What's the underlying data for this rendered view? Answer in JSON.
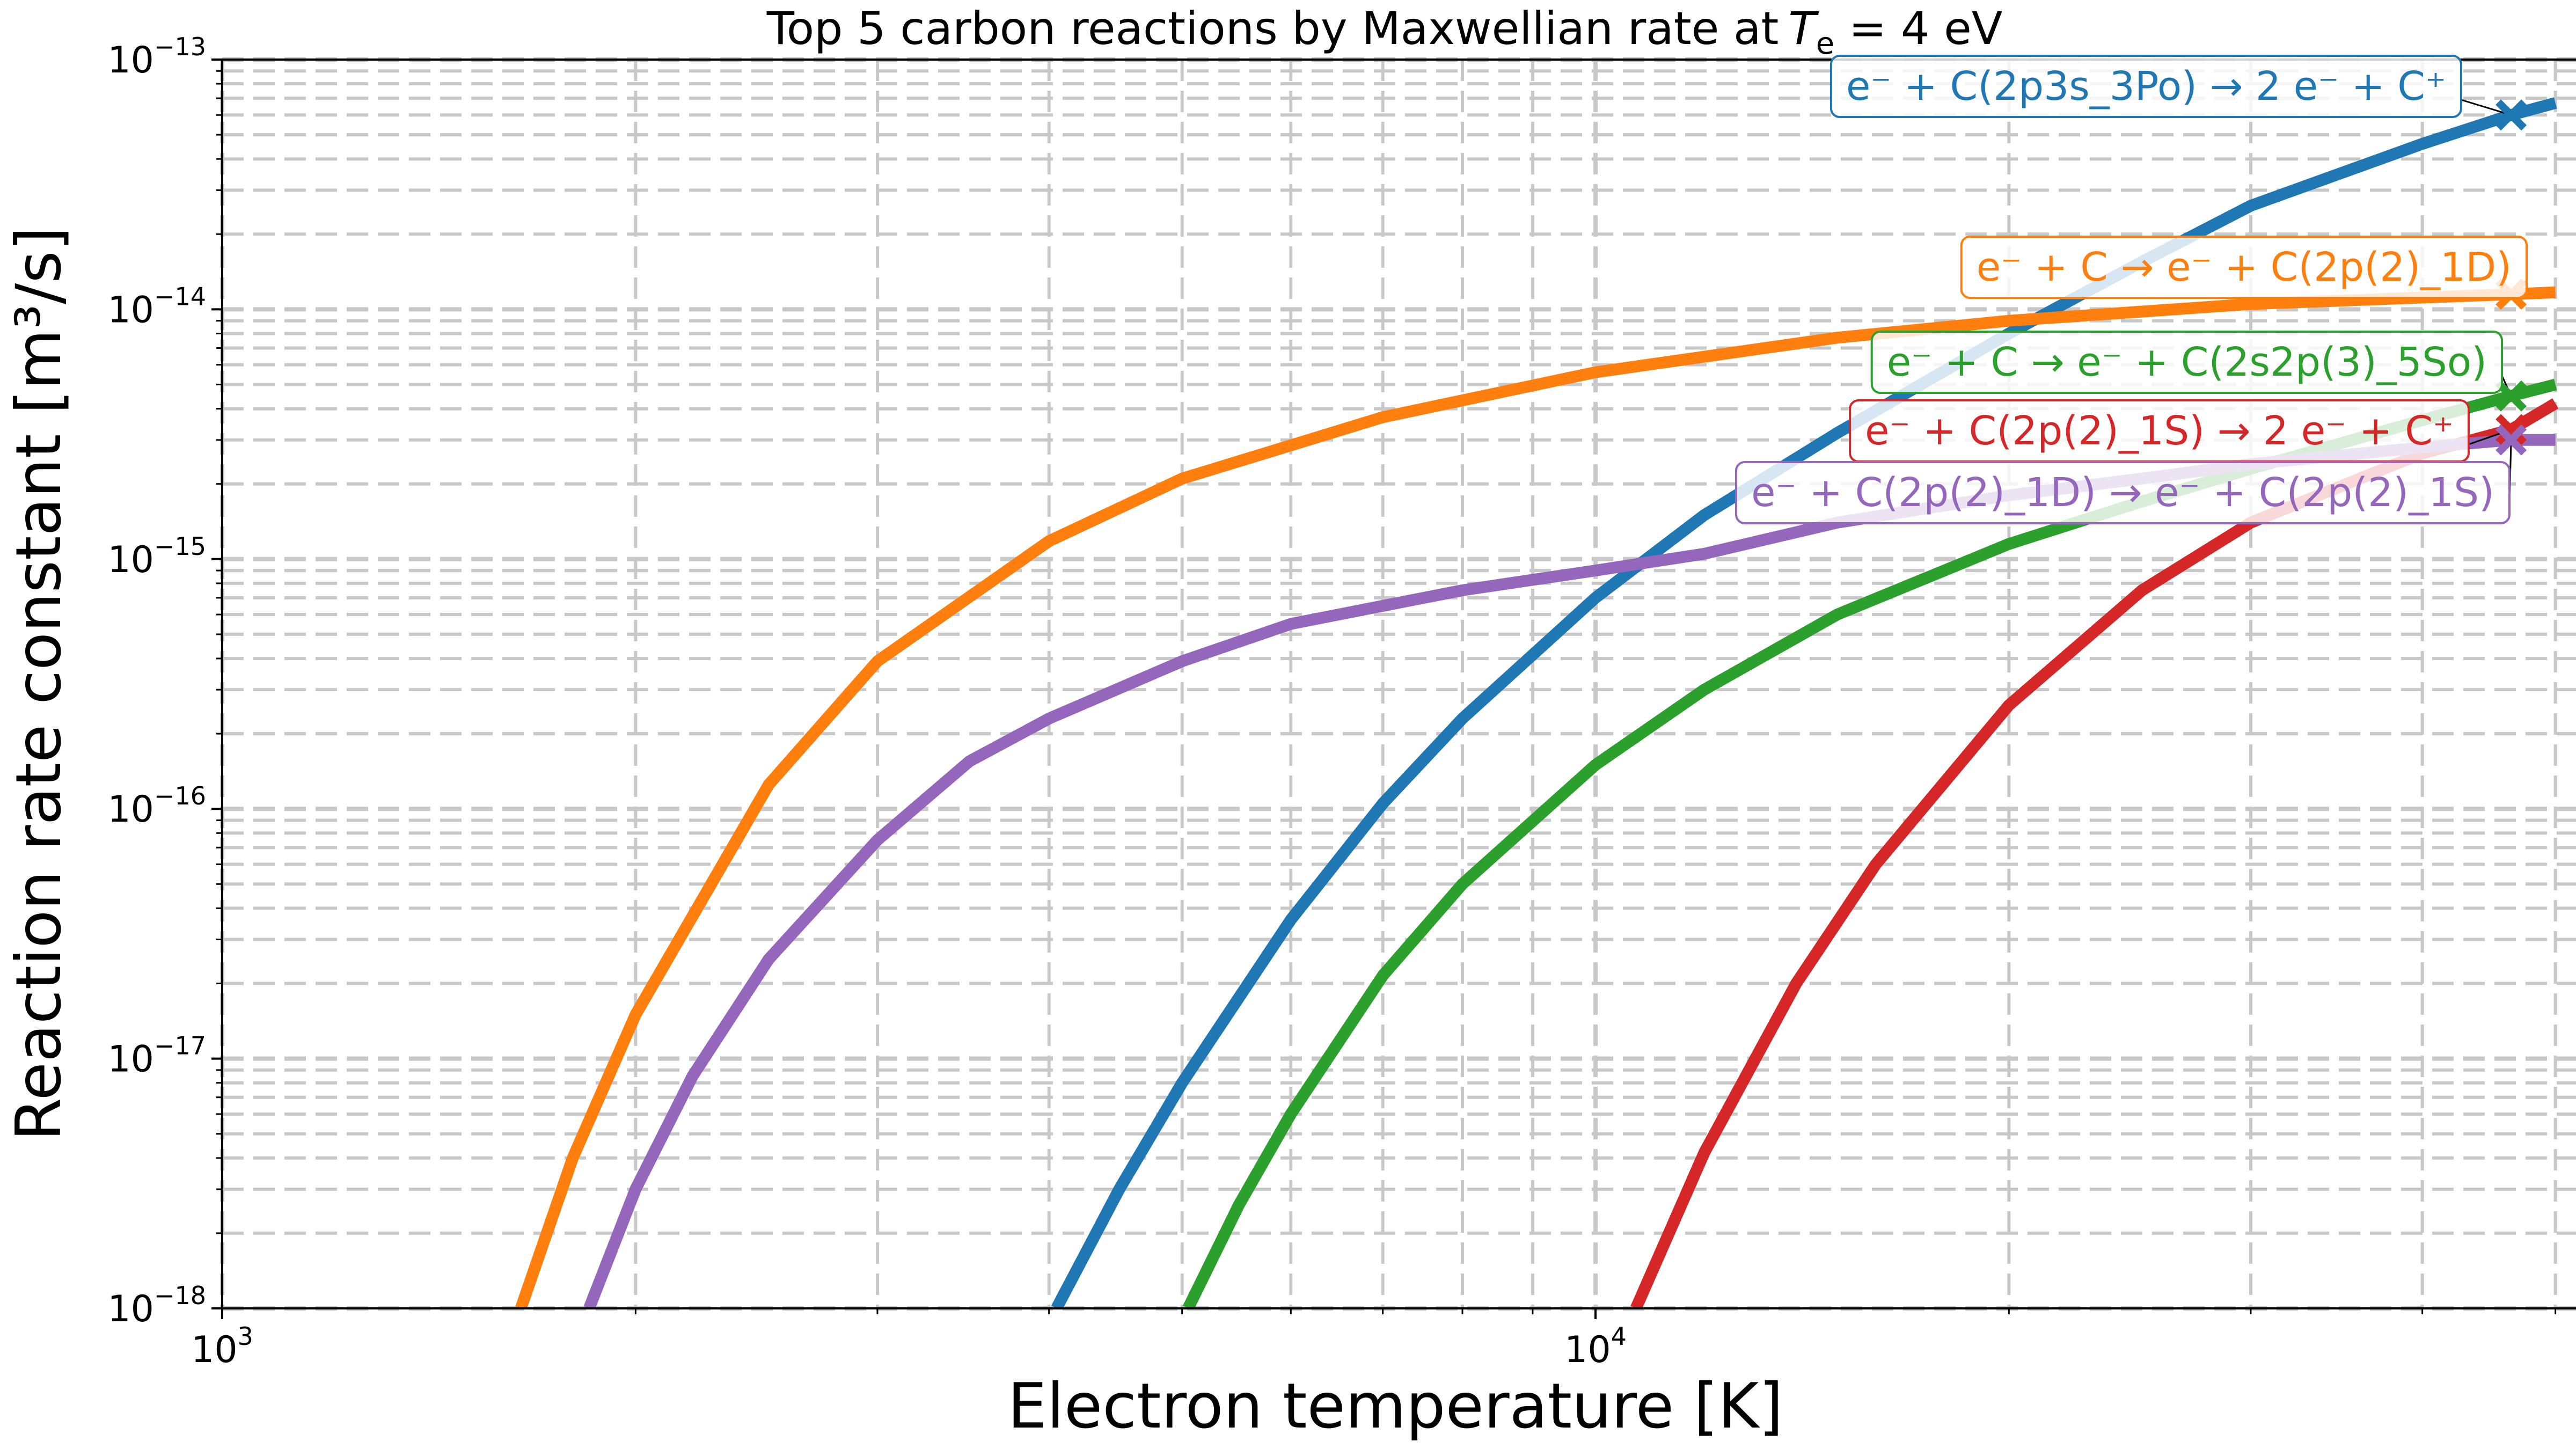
{
  "chart_data": {
    "type": "line",
    "title": "Top 5 carbon reactions by Maxwellian rate at",
    "title_math": {
      "var": "T",
      "sub": "e",
      "rest": " = 4 eV"
    },
    "xlabel": "Electron temperature [K]",
    "ylabel": "Reaction rate constant [m³/s]",
    "xscale": "log",
    "yscale": "log",
    "xlim": [
      1000,
      50000
    ],
    "ylim": [
      1e-18,
      1e-13
    ],
    "grid": true,
    "x_ticks": [
      {
        "base": "10",
        "exp": "3",
        "value": 1000
      },
      {
        "base": "10",
        "exp": "4",
        "value": 10000
      }
    ],
    "y_ticks": [
      {
        "base": "10",
        "exp": "−13",
        "value": 1e-13
      },
      {
        "base": "10",
        "exp": "−14",
        "value": 1e-14
      },
      {
        "base": "10",
        "exp": "−15",
        "value": 1e-15
      },
      {
        "base": "10",
        "exp": "−16",
        "value": 1e-16
      },
      {
        "base": "10",
        "exp": "−17",
        "value": 1e-17
      },
      {
        "base": "10",
        "exp": "−18",
        "value": 1e-18
      }
    ],
    "marker_x": 46420,
    "series": [
      {
        "name": "e⁻ + C(2p3s_3Po) → 2 e⁻ + C⁺",
        "color": "#1f77b4",
        "x": [
          4050,
          4500,
          5000,
          6000,
          7000,
          8000,
          10000,
          12000,
          15000,
          20000,
          25000,
          30000,
          40000,
          46420,
          50000
        ],
        "y": [
          1e-18,
          3e-18,
          8e-18,
          3.6e-17,
          1.05e-16,
          2.3e-16,
          7e-16,
          1.5e-15,
          3.2e-15,
          8e-15,
          1.55e-14,
          2.6e-14,
          4.6e-14,
          6e-14,
          6.7e-14
        ]
      },
      {
        "name": "e⁻ + C → e⁻ + C(2p(2)_1D)",
        "color": "#ff7f0e",
        "x": [
          1650,
          1800,
          2000,
          2500,
          3000,
          4000,
          5000,
          7000,
          10000,
          15000,
          20000,
          30000,
          46420,
          50000
        ],
        "y": [
          1e-18,
          4e-18,
          1.5e-17,
          1.25e-16,
          3.9e-16,
          1.18e-15,
          2.1e-15,
          3.7e-15,
          5.6e-15,
          7.7e-15,
          9e-15,
          1.05e-14,
          1.15e-14,
          1.17e-14
        ]
      },
      {
        "name": "e⁻ + C → e⁻ + C(2s2p(3)_5So)",
        "color": "#2ca02c",
        "x": [
          5050,
          5500,
          6000,
          7000,
          8000,
          10000,
          12000,
          15000,
          20000,
          25000,
          30000,
          40000,
          46420,
          50000
        ],
        "y": [
          1e-18,
          2.6e-18,
          6e-18,
          2.15e-17,
          5e-17,
          1.5e-16,
          3e-16,
          6e-16,
          1.15e-15,
          1.7e-15,
          2.3e-15,
          3.6e-15,
          4.5e-15,
          5e-15
        ]
      },
      {
        "name": "e⁻ + C(2p(2)_1S) → 2 e⁻ + C⁺",
        "color": "#d62728",
        "x": [
          10700,
          12000,
          14000,
          16000,
          20000,
          25000,
          30000,
          40000,
          46420,
          50000
        ],
        "y": [
          1e-18,
          4.2e-18,
          2e-17,
          6e-17,
          2.6e-16,
          7.5e-16,
          1.4e-15,
          2.65e-15,
          3.3e-15,
          4.2e-15
        ]
      },
      {
        "name": "e⁻ + C(2p(2)_1D) → e⁻ + C(2p(2)_1S)",
        "color": "#9467bd",
        "x": [
          1850,
          2000,
          2200,
          2500,
          3000,
          3500,
          4000,
          5000,
          6000,
          7000,
          8000,
          10000,
          12000,
          15000,
          20000,
          25000,
          30000,
          40000,
          46420,
          50000
        ],
        "y": [
          1e-18,
          3e-18,
          8.5e-18,
          2.5e-17,
          7.5e-17,
          1.55e-16,
          2.3e-16,
          3.9e-16,
          5.5e-16,
          6.5e-16,
          7.5e-16,
          9e-16,
          1.05e-15,
          1.4e-15,
          1.8e-15,
          2.1e-15,
          2.4e-15,
          2.8e-15,
          3e-15,
          3e-15
        ]
      }
    ]
  }
}
